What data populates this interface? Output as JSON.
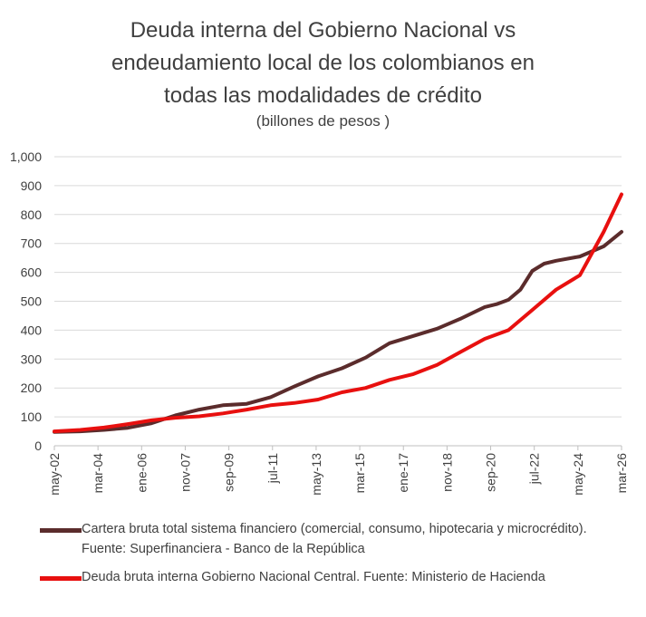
{
  "chart_data": {
    "type": "line",
    "title_lines": [
      "Deuda interna del Gobierno Nacional vs",
      "endeudamiento local de los colombianos en",
      "todas las modalidades de crédito"
    ],
    "subtitle": "(billones de pesos )",
    "ylim": [
      0,
      1000
    ],
    "yticks": [
      0,
      100,
      200,
      300,
      400,
      500,
      600,
      700,
      800,
      900,
      1000
    ],
    "ytick_labels": [
      "0",
      "100",
      "200",
      "300",
      "400",
      "500",
      "600",
      "700",
      "800",
      "900",
      "1,000"
    ],
    "xlim": [
      "2002-05",
      "2026-03"
    ],
    "xtick_labels": [
      "may-02",
      "mar-04",
      "ene-06",
      "nov-07",
      "sep-09",
      "jul-11",
      "may-13",
      "mar-15",
      "ene-17",
      "nov-18",
      "sep-20",
      "jul-22",
      "may-24",
      "mar-26"
    ],
    "grid": true,
    "series": [
      {
        "name": "Cartera bruta total sistema financiero (comercial, consumo, hipotecaria y microcrédito). Fuente: Superfinanciera - Banco de la República",
        "color": "#5b2c2c",
        "points": [
          [
            "2002-05",
            48
          ],
          [
            "2003-06",
            50
          ],
          [
            "2004-06",
            55
          ],
          [
            "2005-06",
            62
          ],
          [
            "2006-06",
            78
          ],
          [
            "2007-06",
            105
          ],
          [
            "2008-06",
            125
          ],
          [
            "2009-06",
            140
          ],
          [
            "2010-06",
            145
          ],
          [
            "2011-06",
            168
          ],
          [
            "2012-06",
            205
          ],
          [
            "2013-06",
            240
          ],
          [
            "2014-06",
            268
          ],
          [
            "2015-06",
            305
          ],
          [
            "2016-06",
            355
          ],
          [
            "2017-06",
            380
          ],
          [
            "2018-06",
            405
          ],
          [
            "2019-06",
            440
          ],
          [
            "2020-06",
            480
          ],
          [
            "2020-12",
            490
          ],
          [
            "2021-06",
            505
          ],
          [
            "2021-12",
            540
          ],
          [
            "2022-06",
            605
          ],
          [
            "2022-12",
            630
          ],
          [
            "2023-06",
            640
          ],
          [
            "2024-06",
            655
          ],
          [
            "2025-06",
            690
          ],
          [
            "2026-03",
            740
          ]
        ]
      },
      {
        "name": "Deuda bruta interna Gobierno Nacional Central. Fuente: Ministerio de Hacienda",
        "color": "#e8100f",
        "points": [
          [
            "2002-05",
            50
          ],
          [
            "2003-06",
            55
          ],
          [
            "2004-06",
            63
          ],
          [
            "2005-06",
            75
          ],
          [
            "2006-06",
            88
          ],
          [
            "2007-06",
            97
          ],
          [
            "2008-06",
            102
          ],
          [
            "2009-06",
            112
          ],
          [
            "2010-06",
            125
          ],
          [
            "2011-06",
            140
          ],
          [
            "2012-06",
            148
          ],
          [
            "2013-06",
            160
          ],
          [
            "2014-06",
            185
          ],
          [
            "2015-06",
            200
          ],
          [
            "2016-06",
            228
          ],
          [
            "2017-06",
            248
          ],
          [
            "2018-06",
            280
          ],
          [
            "2019-06",
            325
          ],
          [
            "2020-06",
            370
          ],
          [
            "2021-06",
            400
          ],
          [
            "2022-06",
            470
          ],
          [
            "2023-06",
            540
          ],
          [
            "2024-06",
            590
          ],
          [
            "2025-06",
            740
          ],
          [
            "2026-03",
            870
          ]
        ]
      }
    ]
  }
}
